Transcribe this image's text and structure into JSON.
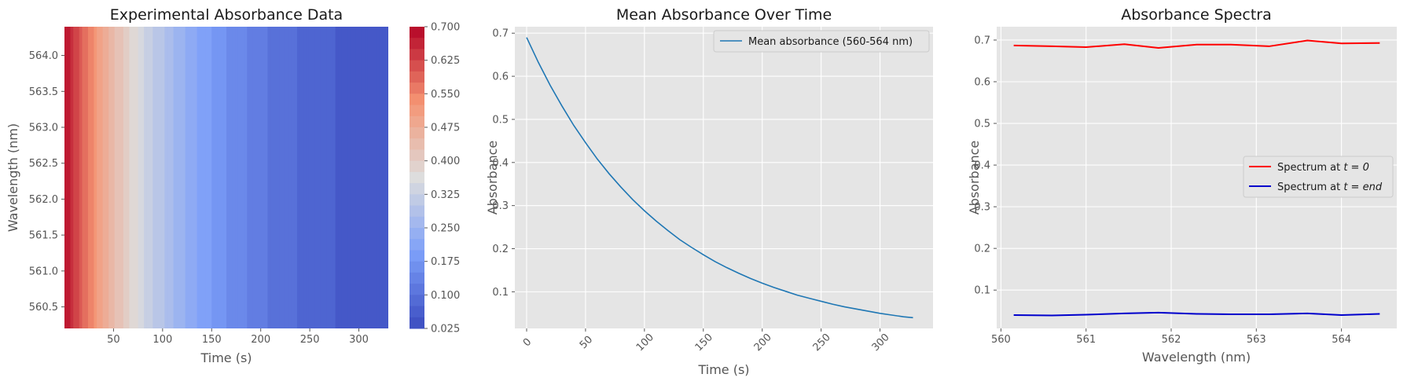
{
  "chart_data": [
    {
      "type": "heatmap",
      "title": "Experimental Absorbance Data",
      "xlabel": "Time (s)",
      "ylabel": "Wavelength (nm)",
      "xlim": [
        0,
        330
      ],
      "ylim": [
        560.2,
        564.4
      ],
      "xticks": [
        50,
        100,
        150,
        200,
        250,
        300
      ],
      "yticks": [
        560.5,
        561.0,
        561.5,
        562.0,
        562.5,
        563.0,
        563.5,
        564.0
      ],
      "ytick_labels": [
        "560.5",
        "561.0",
        "561.5",
        "562.0",
        "562.5",
        "563.0",
        "563.5",
        "564.0"
      ],
      "colormap": "coolwarm",
      "colorbar_ticks": [
        "0.700",
        "0.625",
        "0.550",
        "0.475",
        "0.400",
        "0.325",
        "0.250",
        "0.175",
        "0.100",
        "0.025"
      ],
      "colorbar_range": [
        0.025,
        0.7
      ],
      "model": {
        "A0": 0.69,
        "k": 0.0087,
        "time_range": [
          0,
          330
        ]
      }
    },
    {
      "type": "line",
      "title": "Mean Absorbance Over Time",
      "xlabel": "Time (s)",
      "ylabel": "Absorbance",
      "xlim": [
        -10,
        345
      ],
      "ylim": [
        0.015,
        0.715
      ],
      "xticks": [
        0,
        50,
        100,
        150,
        200,
        250,
        300
      ],
      "yticks": [
        0.1,
        0.2,
        0.3,
        0.4,
        0.5,
        0.6,
        0.7
      ],
      "series": [
        {
          "name": "Mean absorbance (560-564 nm)",
          "color": "#1f77b4",
          "x": [
            0,
            10,
            20,
            30,
            40,
            50,
            60,
            70,
            80,
            90,
            100,
            110,
            120,
            130,
            140,
            150,
            160,
            170,
            180,
            190,
            200,
            210,
            220,
            230,
            240,
            250,
            260,
            270,
            280,
            290,
            300,
            310,
            320,
            328
          ],
          "y": [
            0.69,
            0.632,
            0.579,
            0.531,
            0.486,
            0.446,
            0.408,
            0.374,
            0.343,
            0.314,
            0.288,
            0.264,
            0.242,
            0.221,
            0.203,
            0.186,
            0.17,
            0.156,
            0.143,
            0.131,
            0.12,
            0.11,
            0.101,
            0.092,
            0.085,
            0.078,
            0.071,
            0.065,
            0.06,
            0.055,
            0.05,
            0.046,
            0.042,
            0.04
          ]
        }
      ],
      "legend": "top-right",
      "grid": true
    },
    {
      "type": "line",
      "title": "Absorbance Spectra",
      "xlabel": "Wavelength (nm)",
      "ylabel": "Absorbance",
      "xlim": [
        559.95,
        564.65
      ],
      "ylim": [
        0.008,
        0.732
      ],
      "xticks": [
        560,
        561,
        562,
        563,
        564
      ],
      "yticks": [
        0.1,
        0.2,
        0.3,
        0.4,
        0.5,
        0.6,
        0.7
      ],
      "series": [
        {
          "name": "Spectrum at t = 0",
          "label_prefix": "Spectrum at ",
          "label_math": "t = 0",
          "color": "#ff0000",
          "x": [
            560.15,
            560.6,
            561.0,
            561.45,
            561.85,
            562.3,
            562.7,
            563.15,
            563.6,
            564.0,
            564.45
          ],
          "y": [
            0.687,
            0.685,
            0.683,
            0.69,
            0.681,
            0.689,
            0.689,
            0.685,
            0.699,
            0.692,
            0.693
          ]
        },
        {
          "name": "Spectrum at t = end",
          "label_prefix": "Spectrum at ",
          "label_math": "t = end",
          "color": "#0000cc",
          "x": [
            560.15,
            560.6,
            561.0,
            561.45,
            561.85,
            562.3,
            562.7,
            563.15,
            563.6,
            564.0,
            564.45
          ],
          "y": [
            0.04,
            0.039,
            0.041,
            0.044,
            0.046,
            0.043,
            0.042,
            0.042,
            0.044,
            0.04,
            0.043
          ]
        }
      ],
      "legend": "center-right",
      "grid": true
    }
  ]
}
